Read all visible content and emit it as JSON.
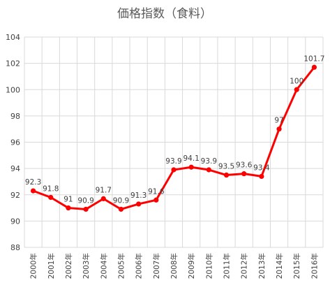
{
  "chart_data": {
    "type": "line",
    "title": "価格指数（食料）",
    "categories": [
      "2000年",
      "2001年",
      "2002年",
      "2003年",
      "2004年",
      "2005年",
      "2006年",
      "2007年",
      "2008年",
      "2009年",
      "2010年",
      "2011年",
      "2012年",
      "2013年",
      "2014年",
      "2015年",
      "2016年"
    ],
    "series": [
      {
        "values": [
          92.3,
          91.8,
          91,
          90.9,
          91.7,
          90.9,
          91.3,
          91.6,
          93.9,
          94.1,
          93.9,
          93.5,
          93.6,
          93.4,
          97,
          100,
          101.7
        ],
        "labels": [
          "92.3",
          "91.8",
          "91",
          "90.9",
          "91.7",
          "90.9",
          "91.3",
          "91.6",
          "93.9",
          "94.1",
          "93.9",
          "93.5",
          "93.6",
          "93.4",
          "97",
          "100",
          "101.7"
        ],
        "color": "#ff0000"
      }
    ],
    "ylim": [
      88,
      104
    ],
    "yticks": [
      "88",
      "90",
      "92",
      "94",
      "96",
      "98",
      "100",
      "102",
      "104"
    ],
    "grid": true,
    "legend": "none"
  }
}
